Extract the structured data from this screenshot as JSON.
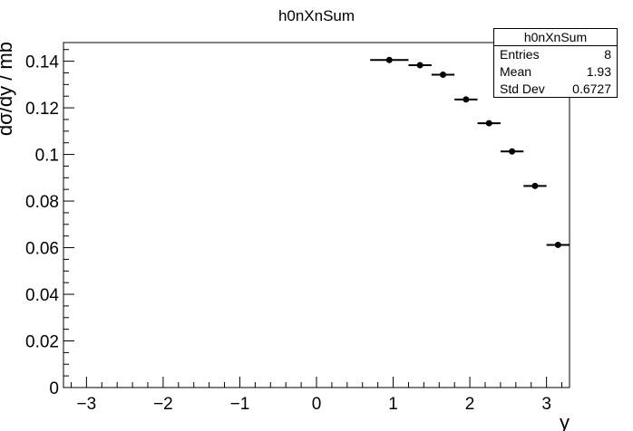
{
  "chart_data": {
    "type": "scatter",
    "title": "h0nXnSum",
    "xlabel": "y",
    "ylabel": "dσ/dy / mb",
    "xlim": [
      -3.3,
      3.3
    ],
    "ylim": [
      0,
      0.148
    ],
    "xticks": [
      -3,
      -2,
      -1,
      0,
      1,
      2,
      3
    ],
    "xtick_labels": [
      "−3",
      "−2",
      "−1",
      "0",
      "1",
      "2",
      "3"
    ],
    "yticks": [
      0,
      0.02,
      0.04,
      0.06,
      0.08,
      0.1,
      0.12,
      0.14
    ],
    "ytick_labels": [
      "0",
      "0.02",
      "0.04",
      "0.06",
      "0.08",
      "0.1",
      "0.12",
      "0.14"
    ],
    "grid": false,
    "legend": "none",
    "series": [
      {
        "x": [
          0.95,
          1.35,
          1.65,
          1.95,
          2.25,
          2.55,
          2.85,
          3.15
        ],
        "xerr": [
          0.25,
          0.15,
          0.15,
          0.15,
          0.15,
          0.15,
          0.15,
          0.15
        ],
        "y": [
          0.1405,
          0.1383,
          0.1342,
          0.1236,
          0.1134,
          0.1013,
          0.0865,
          0.0612
        ]
      }
    ]
  },
  "stats": {
    "title": "h0nXnSum",
    "rows": [
      {
        "label": "Entries",
        "value": "8"
      },
      {
        "label": "Mean",
        "value": "1.93"
      },
      {
        "label": "Std Dev",
        "value": "0.6727"
      }
    ]
  }
}
